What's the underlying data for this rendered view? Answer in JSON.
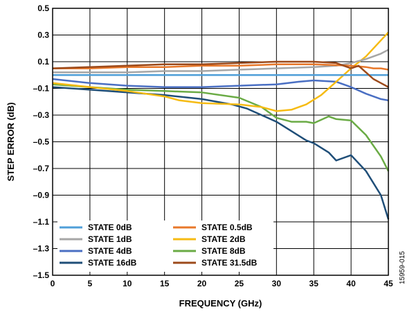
{
  "chart_data": {
    "type": "line",
    "xlabel": "FREQUENCY (GHz)",
    "ylabel": "STEP ERROR (dB)",
    "xlim": [
      0,
      45
    ],
    "ylim": [
      -1.5,
      0.5
    ],
    "xticks": [
      0,
      5,
      10,
      15,
      20,
      25,
      30,
      35,
      40,
      45
    ],
    "yticks": [
      0.5,
      0.3,
      0.1,
      -0.1,
      -0.3,
      -0.5,
      -0.7,
      -0.9,
      -1.1,
      -1.3,
      -1.5
    ],
    "xtick_labels": [
      "0",
      "5",
      "10",
      "15",
      "20",
      "25",
      "30",
      "35",
      "40",
      "45"
    ],
    "ytick_labels": [
      "0.5",
      "0.3",
      "0.1",
      "–0.1",
      "–0.3",
      "–0.5",
      "–0.7",
      "–0.9",
      "–1.1",
      "–1.3",
      "–1.5"
    ],
    "grid": true,
    "legend_position": "bottom-left",
    "series": [
      {
        "name": "STATE 0dB",
        "color": "#4f9fd8",
        "x": [
          0,
          5,
          10,
          15,
          20,
          25,
          30,
          35,
          40,
          45
        ],
        "y": [
          0.0,
          0.0,
          0.0,
          0.0,
          0.0,
          0.0,
          0.0,
          0.0,
          0.0,
          0.0
        ]
      },
      {
        "name": "STATE 0.5dB",
        "color": "#e8782a",
        "x": [
          0,
          5,
          10,
          15,
          20,
          25,
          30,
          35,
          40,
          42,
          43,
          44,
          45
        ],
        "y": [
          0.05,
          0.05,
          0.06,
          0.06,
          0.07,
          0.07,
          0.08,
          0.08,
          0.07,
          0.06,
          0.05,
          0.05,
          0.04
        ]
      },
      {
        "name": "STATE 1dB",
        "color": "#a6a6a6",
        "x": [
          0,
          5,
          10,
          15,
          20,
          25,
          30,
          35,
          38,
          40,
          42,
          44,
          45
        ],
        "y": [
          0.02,
          0.02,
          0.02,
          0.03,
          0.03,
          0.04,
          0.05,
          0.06,
          0.07,
          0.09,
          0.12,
          0.16,
          0.19
        ]
      },
      {
        "name": "STATE 2dB",
        "color": "#f6bb13",
        "x": [
          0,
          5,
          10,
          15,
          17,
          20,
          25,
          28,
          30,
          32,
          34,
          36,
          38,
          40,
          42,
          44,
          45
        ],
        "y": [
          -0.06,
          -0.09,
          -0.12,
          -0.16,
          -0.19,
          -0.21,
          -0.22,
          -0.24,
          -0.27,
          -0.26,
          -0.22,
          -0.15,
          -0.05,
          0.05,
          0.14,
          0.26,
          0.32
        ]
      },
      {
        "name": "STATE 4dB",
        "color": "#4a6fc3",
        "x": [
          0,
          5,
          10,
          15,
          20,
          25,
          30,
          33,
          35,
          38,
          40,
          42,
          44,
          45
        ],
        "y": [
          -0.03,
          -0.06,
          -0.08,
          -0.09,
          -0.09,
          -0.08,
          -0.07,
          -0.05,
          -0.04,
          -0.05,
          -0.09,
          -0.14,
          -0.18,
          -0.19
        ]
      },
      {
        "name": "STATE 8dB",
        "color": "#6aab45",
        "x": [
          0,
          5,
          10,
          15,
          20,
          25,
          28,
          30,
          32,
          34,
          35,
          37,
          38,
          40,
          42,
          44,
          45
        ],
        "y": [
          -0.07,
          -0.09,
          -0.11,
          -0.12,
          -0.13,
          -0.17,
          -0.24,
          -0.32,
          -0.35,
          -0.35,
          -0.36,
          -0.31,
          -0.33,
          -0.34,
          -0.45,
          -0.61,
          -0.72
        ]
      },
      {
        "name": "STATE 16dB",
        "color": "#1f4e78",
        "x": [
          0,
          5,
          10,
          15,
          20,
          24,
          26,
          28,
          30,
          32,
          34,
          35,
          37,
          38,
          40,
          42,
          44,
          45
        ],
        "y": [
          -0.09,
          -0.11,
          -0.13,
          -0.15,
          -0.18,
          -0.22,
          -0.25,
          -0.3,
          -0.35,
          -0.42,
          -0.49,
          -0.51,
          -0.58,
          -0.64,
          -0.6,
          -0.72,
          -0.9,
          -1.08
        ]
      },
      {
        "name": "STATE 31.5dB",
        "color": "#9c4a1b",
        "x": [
          0,
          5,
          10,
          15,
          20,
          25,
          30,
          35,
          38,
          40,
          41,
          42,
          43,
          44,
          45
        ],
        "y": [
          0.05,
          0.06,
          0.07,
          0.08,
          0.08,
          0.09,
          0.1,
          0.1,
          0.09,
          0.05,
          0.07,
          0.02,
          -0.03,
          -0.06,
          -0.09
        ]
      }
    ]
  },
  "figure_id": "15959-015"
}
